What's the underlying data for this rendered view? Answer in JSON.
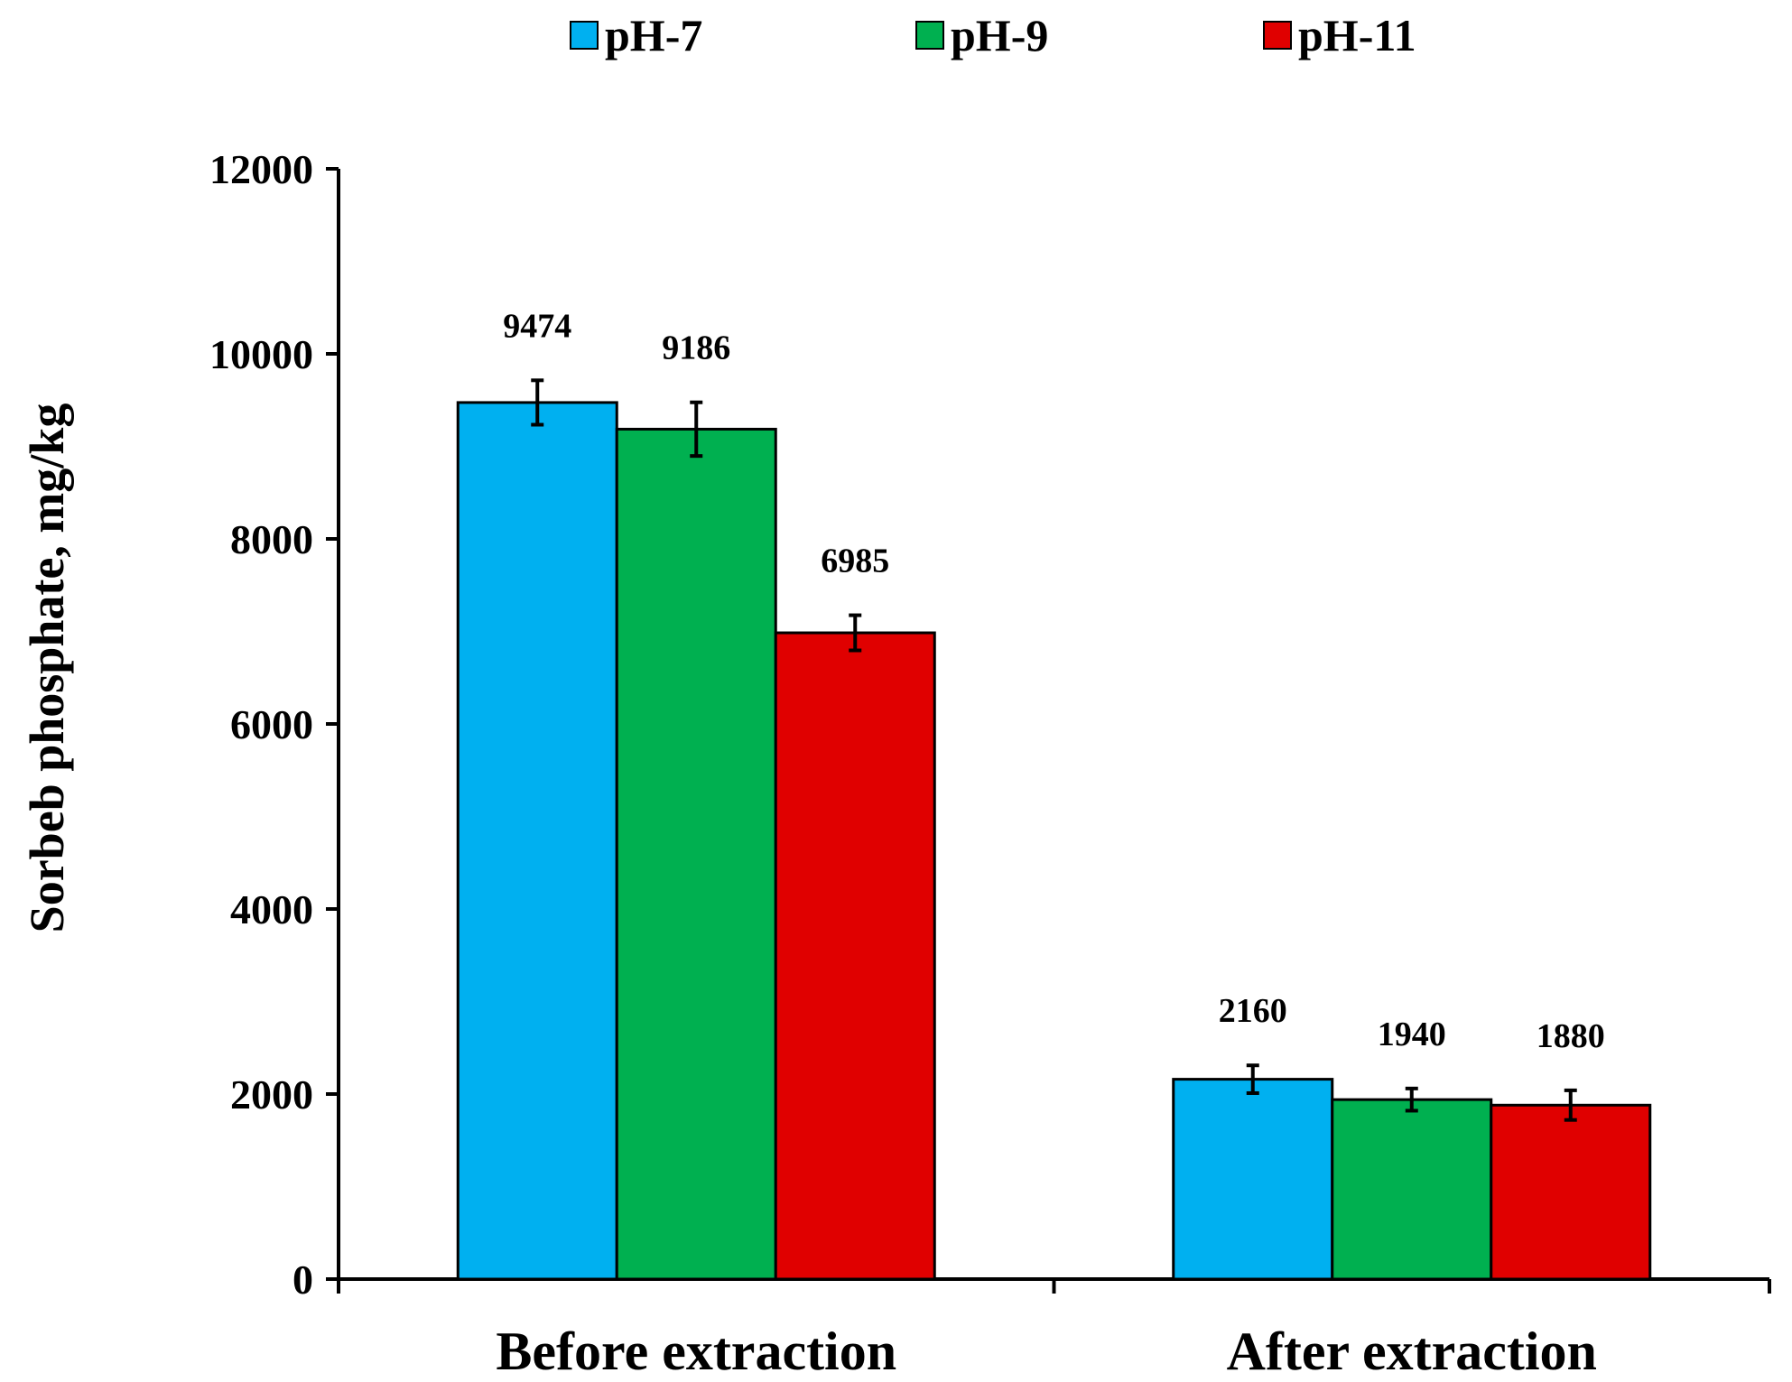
{
  "chart_data": {
    "type": "bar",
    "title": "",
    "xlabel": "",
    "ylabel": "Sorbeb phosphate, mg/kg",
    "ylim": [
      0,
      12000
    ],
    "yticks": [
      0,
      2000,
      4000,
      6000,
      8000,
      10000,
      12000
    ],
    "grid": false,
    "legend_position": "top-center",
    "categories": [
      "Before extraction",
      "After extraction"
    ],
    "series": [
      {
        "name": "pH-7",
        "color": "#00B0F0",
        "values": [
          9474,
          2160
        ],
        "errors": [
          240,
          150
        ],
        "labels": [
          "9474",
          "2160"
        ]
      },
      {
        "name": "pH-9",
        "color": "#00B050",
        "values": [
          9186,
          1940
        ],
        "errors": [
          290,
          120
        ],
        "labels": [
          "9186",
          "1940"
        ]
      },
      {
        "name": "pH-11",
        "color": "#E00000",
        "values": [
          6985,
          1880
        ],
        "errors": [
          190,
          160
        ],
        "labels": [
          "6985",
          "1880"
        ]
      }
    ]
  }
}
